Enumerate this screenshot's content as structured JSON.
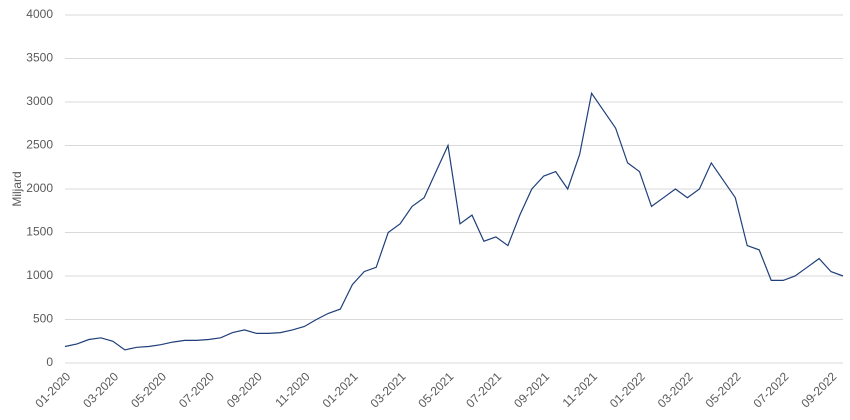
{
  "chart_data": {
    "type": "line",
    "y_label": "Miljard",
    "categories": [
      "01-2020",
      null,
      null,
      null,
      "03-2020",
      null,
      null,
      null,
      "05-2020",
      null,
      null,
      null,
      "07-2020",
      null,
      null,
      null,
      "09-2020",
      null,
      null,
      null,
      "11-2020",
      null,
      null,
      null,
      "01-2021",
      null,
      null,
      null,
      "03-2021",
      null,
      null,
      null,
      "05-2021",
      null,
      null,
      null,
      "07-2021",
      null,
      null,
      null,
      "09-2021",
      null,
      null,
      null,
      "11-2021",
      null,
      null,
      null,
      "01-2022",
      null,
      null,
      null,
      "03-2022",
      null,
      null,
      null,
      "05-2022",
      null,
      null,
      null,
      "07-2022",
      null,
      null,
      null,
      "09-2022",
      null
    ],
    "series": [
      {
        "name": "Miljard",
        "color": "#1f3f7a",
        "values": [
          190,
          220,
          270,
          290,
          250,
          150,
          180,
          190,
          210,
          240,
          260,
          260,
          270,
          290,
          350,
          380,
          340,
          340,
          350,
          380,
          420,
          500,
          570,
          620,
          900,
          1050,
          1100,
          1500,
          1600,
          1800,
          1900,
          2200,
          2500,
          1600,
          1700,
          1400,
          1450,
          1350,
          1700,
          2000,
          2150,
          2200,
          2000,
          2400,
          3100,
          2900,
          2700,
          2300,
          2200,
          1800,
          1900,
          2000,
          1900,
          2000,
          2300,
          2100,
          1900,
          1350,
          1300,
          950,
          950,
          1000,
          1100,
          1200,
          1050,
          1000
        ]
      }
    ],
    "ylim": [
      0,
      4000
    ],
    "yticks": [
      0,
      500,
      1000,
      1500,
      2000,
      2500,
      3000,
      3500,
      4000
    ],
    "grid": true
  }
}
